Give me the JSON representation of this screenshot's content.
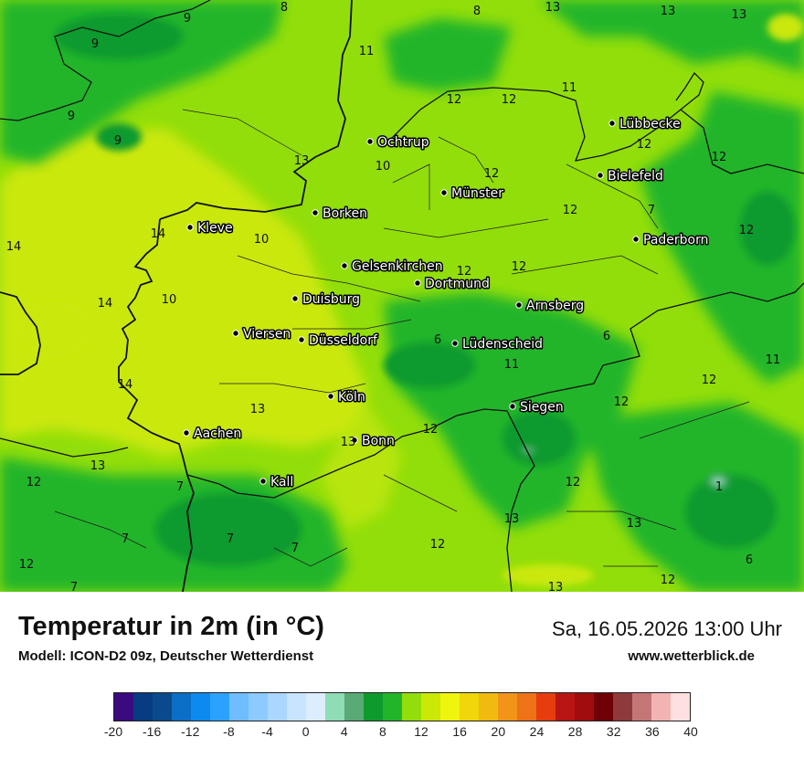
{
  "title": "Temperatur in 2m (in °C)",
  "model": "Modell: ICON-D2 09z, Deutscher Wetterdienst",
  "datetime": "Sa, 16.05.2026 13:00 Uhr",
  "website": "www.wetterblick.de",
  "legend": {
    "colors": [
      "#3b0a7f",
      "#073b80",
      "#0a4a8c",
      "#0b6ec7",
      "#0c8af0",
      "#2ba2ff",
      "#6fbcff",
      "#8ccaff",
      "#aad6ff",
      "#c9e4ff",
      "#dcedff",
      "#8fdcb6",
      "#5aaa76",
      "#0f9a2e",
      "#22b52a",
      "#92de0a",
      "#cbe807",
      "#f0f50d",
      "#f0d60a",
      "#f0bb0e",
      "#f19417",
      "#ee7216",
      "#e63c0e",
      "#b81414",
      "#a10c0f",
      "#6f0006",
      "#8e3a3a",
      "#c47676",
      "#f2b3b3",
      "#ffe0e0"
    ],
    "ticks": [
      "-20",
      "-16",
      "-12",
      "-8",
      "-4",
      "0",
      "4",
      "8",
      "12",
      "16",
      "20",
      "24",
      "28",
      "32",
      "36",
      "40"
    ]
  },
  "cities": [
    {
      "name": "Lübbecke"
    },
    {
      "name": "Ochtrup"
    },
    {
      "name": "Bielefeld"
    },
    {
      "name": "Münster"
    },
    {
      "name": "Borken"
    },
    {
      "name": "Kleve"
    },
    {
      "name": "Paderborn"
    },
    {
      "name": "Gelsenkirchen"
    },
    {
      "name": "Dortmund"
    },
    {
      "name": "Duisburg"
    },
    {
      "name": "Arnsberg"
    },
    {
      "name": "Viersen"
    },
    {
      "name": "Düsseldorf"
    },
    {
      "name": "Lüdenscheid"
    },
    {
      "name": "Köln"
    },
    {
      "name": "Siegen"
    },
    {
      "name": "Aachen"
    },
    {
      "name": "Bonn"
    },
    {
      "name": "Kall"
    }
  ],
  "values": [
    {
      "v": "8"
    },
    {
      "v": "9"
    },
    {
      "v": "8"
    },
    {
      "v": "13"
    },
    {
      "v": "13"
    },
    {
      "v": "13"
    },
    {
      "v": "9"
    },
    {
      "v": "11"
    },
    {
      "v": "12"
    },
    {
      "v": "12"
    },
    {
      "v": "11"
    },
    {
      "v": "9"
    },
    {
      "v": "9"
    },
    {
      "v": "12"
    },
    {
      "v": "13"
    },
    {
      "v": "10"
    },
    {
      "v": "12"
    },
    {
      "v": "12"
    },
    {
      "v": "12"
    },
    {
      "v": "7"
    },
    {
      "v": "12"
    },
    {
      "v": "14"
    },
    {
      "v": "14"
    },
    {
      "v": "10"
    },
    {
      "v": "12"
    },
    {
      "v": "12"
    },
    {
      "v": "14"
    },
    {
      "v": "10"
    },
    {
      "v": "6"
    },
    {
      "v": "6"
    },
    {
      "v": "11"
    },
    {
      "v": "11"
    },
    {
      "v": "14"
    },
    {
      "v": "12"
    },
    {
      "v": "13"
    },
    {
      "v": "12"
    },
    {
      "v": "12"
    },
    {
      "v": "13"
    },
    {
      "v": "13"
    },
    {
      "v": "12"
    },
    {
      "v": "12"
    },
    {
      "v": "7"
    },
    {
      "v": "1"
    },
    {
      "v": "13"
    },
    {
      "v": "7"
    },
    {
      "v": "7"
    },
    {
      "v": "7"
    },
    {
      "v": "12"
    },
    {
      "v": "13"
    },
    {
      "v": "12"
    },
    {
      "v": "6"
    },
    {
      "v": "7"
    },
    {
      "v": "13"
    },
    {
      "v": "12"
    }
  ]
}
